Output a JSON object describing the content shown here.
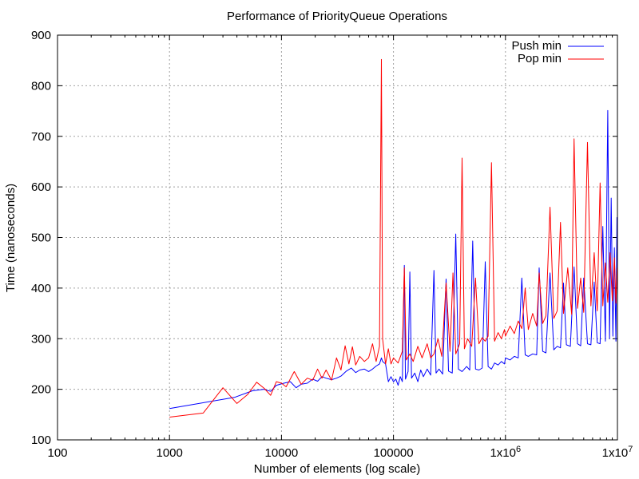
{
  "chart_data": {
    "type": "line",
    "title": "Performance of PriorityQueue Operations",
    "xlabel": "Number of elements (log scale)",
    "ylabel": "Time (nanoseconds)",
    "xscale": "log",
    "xlim": [
      100,
      10000000
    ],
    "ylim": [
      100,
      900
    ],
    "grid": true,
    "legend_position": "top-right",
    "x_ticks": [
      {
        "value": 100,
        "label": "100"
      },
      {
        "value": 1000,
        "label": "1000"
      },
      {
        "value": 10000,
        "label": "10000"
      },
      {
        "value": 100000,
        "label": "100000"
      },
      {
        "value": 1000000,
        "label": "1x10",
        "exp": "6"
      },
      {
        "value": 10000000,
        "label": "1x10",
        "exp": "7"
      }
    ],
    "y_ticks": [
      {
        "value": 100,
        "label": "100"
      },
      {
        "value": 200,
        "label": "200"
      },
      {
        "value": 300,
        "label": "300"
      },
      {
        "value": 400,
        "label": "400"
      },
      {
        "value": 500,
        "label": "500"
      },
      {
        "value": 600,
        "label": "600"
      },
      {
        "value": 700,
        "label": "700"
      },
      {
        "value": 800,
        "label": "800"
      },
      {
        "value": 900,
        "label": "900"
      }
    ],
    "series": [
      {
        "name": "Push min",
        "color": "#0000ff",
        "points": [
          [
            1000,
            162
          ],
          [
            3800,
            184
          ],
          [
            5500,
            197
          ],
          [
            7000,
            200
          ],
          [
            8000,
            196
          ],
          [
            9000,
            208
          ],
          [
            10500,
            212
          ],
          [
            12000,
            215
          ],
          [
            13500,
            203
          ],
          [
            15000,
            210
          ],
          [
            17000,
            212
          ],
          [
            19000,
            220
          ],
          [
            21000,
            216
          ],
          [
            23000,
            225
          ],
          [
            25000,
            222
          ],
          [
            28000,
            219
          ],
          [
            31000,
            222
          ],
          [
            34000,
            226
          ],
          [
            38000,
            236
          ],
          [
            42000,
            242
          ],
          [
            46000,
            233
          ],
          [
            50000,
            238
          ],
          [
            55000,
            240
          ],
          [
            60000,
            235
          ],
          [
            65000,
            240
          ],
          [
            70000,
            246
          ],
          [
            75000,
            250
          ],
          [
            78000,
            262
          ],
          [
            80000,
            255
          ],
          [
            85000,
            250
          ],
          [
            90000,
            215
          ],
          [
            95000,
            225
          ],
          [
            100000,
            215
          ],
          [
            105000,
            220
          ],
          [
            110000,
            208
          ],
          [
            115000,
            225
          ],
          [
            120000,
            215
          ],
          [
            125000,
            445
          ],
          [
            128000,
            220
          ],
          [
            135000,
            235
          ],
          [
            140000,
            432
          ],
          [
            145000,
            222
          ],
          [
            155000,
            232
          ],
          [
            165000,
            215
          ],
          [
            175000,
            238
          ],
          [
            185000,
            225
          ],
          [
            200000,
            240
          ],
          [
            215000,
            228
          ],
          [
            230000,
            435
          ],
          [
            240000,
            232
          ],
          [
            255000,
            240
          ],
          [
            275000,
            230
          ],
          [
            295000,
            418
          ],
          [
            310000,
            236
          ],
          [
            335000,
            232
          ],
          [
            360000,
            507
          ],
          [
            380000,
            240
          ],
          [
            410000,
            235
          ],
          [
            450000,
            245
          ],
          [
            480000,
            238
          ],
          [
            510000,
            493
          ],
          [
            540000,
            240
          ],
          [
            580000,
            238
          ],
          [
            620000,
            242
          ],
          [
            660000,
            452
          ],
          [
            700000,
            245
          ],
          [
            750000,
            240
          ],
          [
            800000,
            252
          ],
          [
            860000,
            248
          ],
          [
            920000,
            255
          ],
          [
            980000,
            250
          ],
          [
            1000000,
            262
          ],
          [
            1100000,
            258
          ],
          [
            1200000,
            265
          ],
          [
            1300000,
            262
          ],
          [
            1400000,
            420
          ],
          [
            1500000,
            268
          ],
          [
            1600000,
            265
          ],
          [
            1750000,
            270
          ],
          [
            1900000,
            268
          ],
          [
            2000000,
            440
          ],
          [
            2150000,
            275
          ],
          [
            2300000,
            272
          ],
          [
            2500000,
            430
          ],
          [
            2700000,
            278
          ],
          [
            2900000,
            285
          ],
          [
            3100000,
            282
          ],
          [
            3300000,
            410
          ],
          [
            3500000,
            288
          ],
          [
            3800000,
            285
          ],
          [
            4100000,
            442
          ],
          [
            4400000,
            290
          ],
          [
            4700000,
            286
          ],
          [
            5000000,
            420
          ],
          [
            5400000,
            290
          ],
          [
            5800000,
            288
          ],
          [
            6200000,
            412
          ],
          [
            6600000,
            292
          ],
          [
            7000000,
            290
          ],
          [
            7400000,
            522
          ],
          [
            7800000,
            295
          ],
          [
            8200000,
            751
          ],
          [
            8500000,
            300
          ],
          [
            8800000,
            578
          ],
          [
            9100000,
            305
          ],
          [
            9400000,
            480
          ],
          [
            9700000,
            295
          ],
          [
            9900000,
            540
          ]
        ]
      },
      {
        "name": "Pop min",
        "color": "#ff0000",
        "points": [
          [
            1000,
            145
          ],
          [
            2000,
            153
          ],
          [
            3000,
            203
          ],
          [
            4000,
            172
          ],
          [
            5000,
            190
          ],
          [
            6000,
            214
          ],
          [
            7000,
            202
          ],
          [
            8000,
            188
          ],
          [
            9000,
            215
          ],
          [
            10000,
            212
          ],
          [
            11000,
            205
          ],
          [
            13000,
            235
          ],
          [
            15000,
            210
          ],
          [
            17000,
            222
          ],
          [
            19000,
            218
          ],
          [
            21000,
            240
          ],
          [
            23000,
            222
          ],
          [
            25000,
            238
          ],
          [
            28000,
            218
          ],
          [
            31000,
            262
          ],
          [
            34000,
            238
          ],
          [
            37000,
            286
          ],
          [
            40000,
            250
          ],
          [
            43000,
            284
          ],
          [
            46000,
            248
          ],
          [
            50000,
            265
          ],
          [
            55000,
            255
          ],
          [
            60000,
            262
          ],
          [
            65000,
            290
          ],
          [
            70000,
            255
          ],
          [
            75000,
            285
          ],
          [
            78000,
            852
          ],
          [
            80000,
            300
          ],
          [
            85000,
            250
          ],
          [
            90000,
            280
          ],
          [
            95000,
            250
          ],
          [
            100000,
            262
          ],
          [
            110000,
            252
          ],
          [
            120000,
            275
          ],
          [
            125000,
            440
          ],
          [
            130000,
            258
          ],
          [
            140000,
            270
          ],
          [
            150000,
            255
          ],
          [
            165000,
            285
          ],
          [
            180000,
            262
          ],
          [
            200000,
            290
          ],
          [
            215000,
            262
          ],
          [
            230000,
            270
          ],
          [
            250000,
            300
          ],
          [
            270000,
            265
          ],
          [
            295000,
            410
          ],
          [
            320000,
            275
          ],
          [
            340000,
            430
          ],
          [
            360000,
            270
          ],
          [
            390000,
            290
          ],
          [
            410000,
            657
          ],
          [
            430000,
            280
          ],
          [
            460000,
            300
          ],
          [
            500000,
            285
          ],
          [
            540000,
            420
          ],
          [
            580000,
            290
          ],
          [
            620000,
            302
          ],
          [
            660000,
            295
          ],
          [
            700000,
            305
          ],
          [
            750000,
            648
          ],
          [
            800000,
            295
          ],
          [
            860000,
            312
          ],
          [
            920000,
            300
          ],
          [
            980000,
            318
          ],
          [
            1000000,
            305
          ],
          [
            1100000,
            325
          ],
          [
            1200000,
            310
          ],
          [
            1300000,
            335
          ],
          [
            1400000,
            320
          ],
          [
            1500000,
            400
          ],
          [
            1600000,
            318
          ],
          [
            1750000,
            350
          ],
          [
            1900000,
            325
          ],
          [
            2000000,
            430
          ],
          [
            2150000,
            330
          ],
          [
            2300000,
            345
          ],
          [
            2500000,
            560
          ],
          [
            2700000,
            340
          ],
          [
            2900000,
            355
          ],
          [
            3100000,
            530
          ],
          [
            3300000,
            350
          ],
          [
            3600000,
            440
          ],
          [
            3900000,
            348
          ],
          [
            4100000,
            695
          ],
          [
            4400000,
            360
          ],
          [
            4700000,
            420
          ],
          [
            5000000,
            352
          ],
          [
            5400000,
            688
          ],
          [
            5800000,
            365
          ],
          [
            6200000,
            470
          ],
          [
            6600000,
            355
          ],
          [
            7000000,
            608
          ],
          [
            7400000,
            365
          ],
          [
            7800000,
            450
          ],
          [
            8200000,
            372
          ],
          [
            8600000,
            470
          ],
          [
            9000000,
            375
          ],
          [
            9400000,
            460
          ],
          [
            9700000,
            370
          ],
          [
            9950000,
            440
          ]
        ]
      }
    ]
  }
}
